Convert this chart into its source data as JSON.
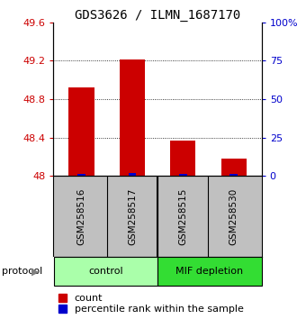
{
  "title": "GDS3626 / ILMN_1687170",
  "samples": [
    "GSM258516",
    "GSM258517",
    "GSM258515",
    "GSM258530"
  ],
  "counts": [
    48.92,
    49.21,
    48.37,
    48.18
  ],
  "percentiles": [
    1.5,
    2.0,
    1.5,
    1.5
  ],
  "ylim_left": [
    48.0,
    49.6
  ],
  "ylim_right": [
    0,
    100
  ],
  "yticks_left": [
    48.0,
    48.4,
    48.8,
    49.2,
    49.6
  ],
  "yticks_right": [
    0,
    25,
    50,
    75,
    100
  ],
  "ytick_labels_left": [
    "48",
    "48.4",
    "48.8",
    "49.2",
    "49.6"
  ],
  "ytick_labels_right": [
    "0",
    "25",
    "50",
    "75",
    "100%"
  ],
  "bar_color_red": "#cc0000",
  "bar_color_blue": "#0000cc",
  "bar_width": 0.5,
  "blue_bar_width": 0.15,
  "groups": [
    {
      "label": "control",
      "color": "#aaffaa"
    },
    {
      "label": "MIF depletion",
      "color": "#33dd33"
    }
  ],
  "group_label_prefix": "protocol",
  "sample_box_color": "#c0c0c0",
  "background_color": "#ffffff",
  "title_fontsize": 10,
  "tick_fontsize": 8,
  "label_fontsize": 8,
  "legend_fontsize": 8
}
